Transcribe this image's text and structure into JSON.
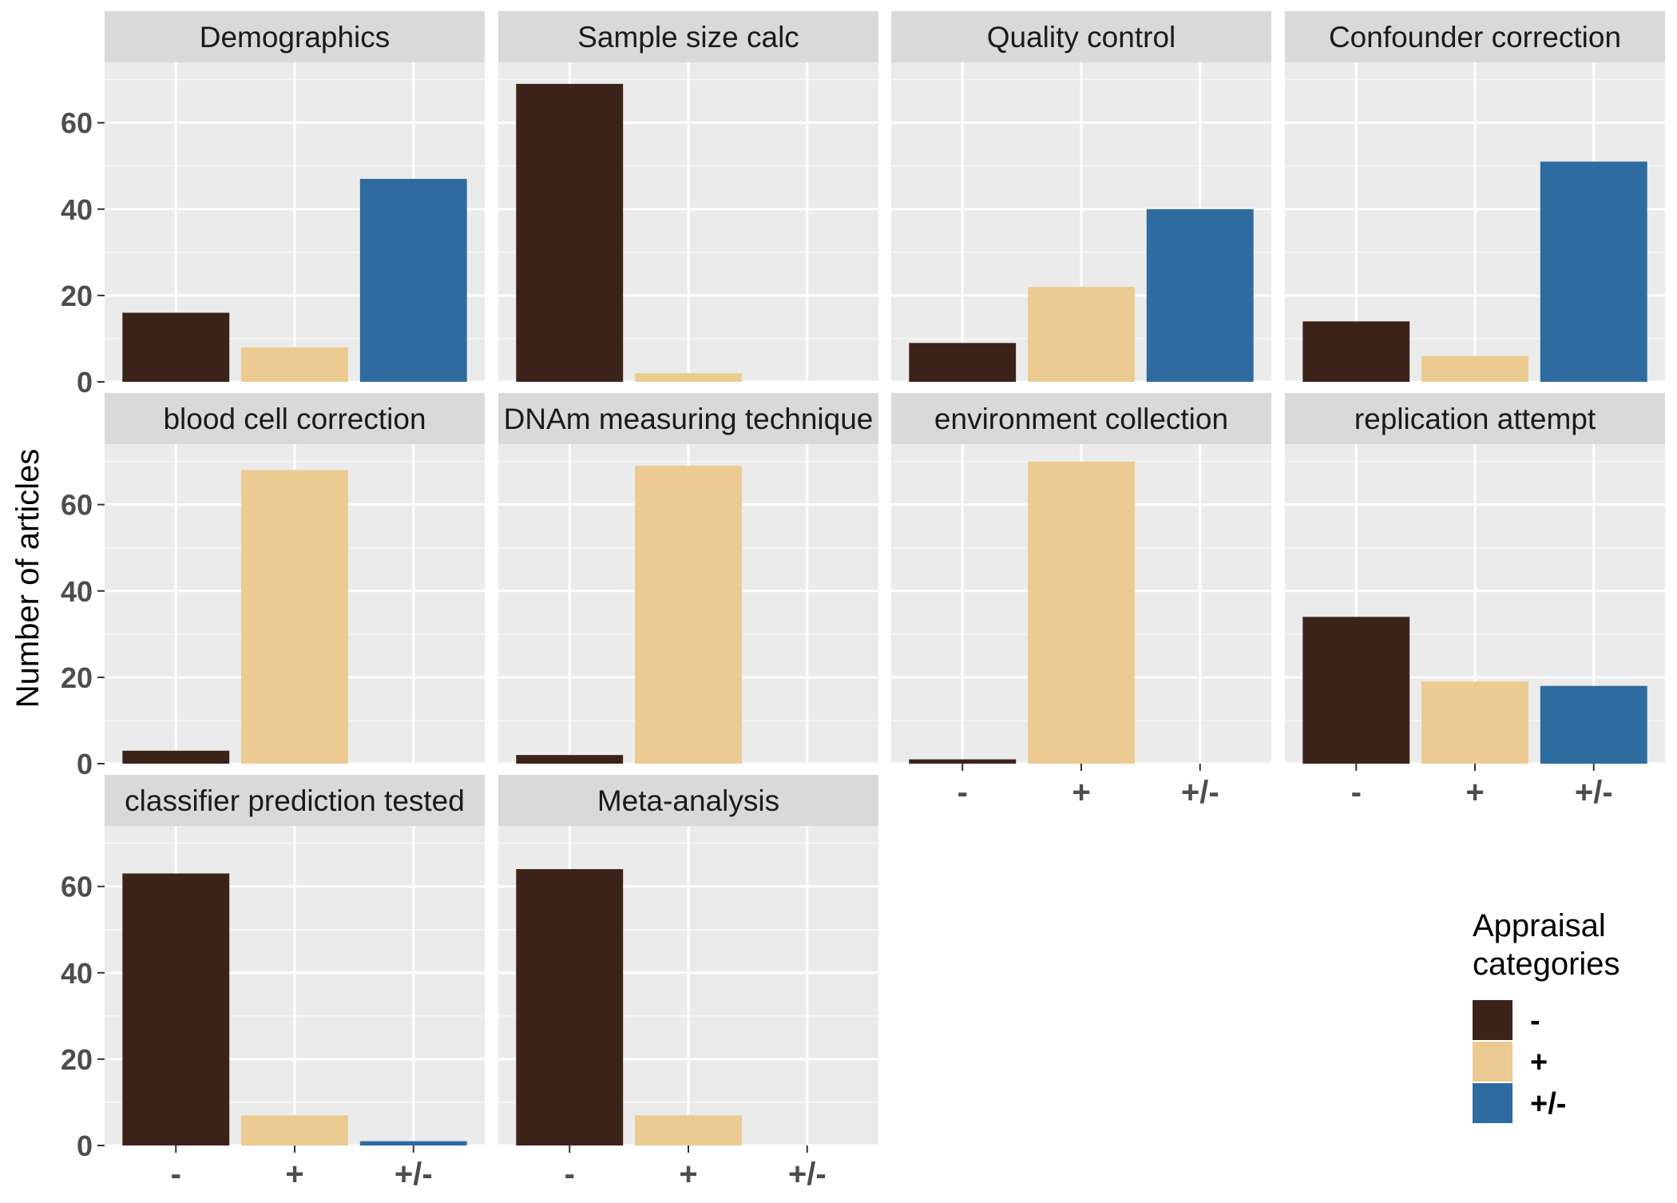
{
  "chart_data": {
    "type": "bar",
    "layout": "facet-grid",
    "ylabel": "Number of articles",
    "ylim": [
      0,
      74
    ],
    "yticks": [
      0,
      20,
      40,
      60
    ],
    "categories": [
      "-",
      "+",
      "+/-"
    ],
    "legend": {
      "title_lines": [
        "Appraisal",
        "categories"
      ],
      "placement": "bottom-right",
      "entries": [
        {
          "label": "-",
          "color": "#3c231a"
        },
        {
          "label": "+",
          "color": "#ebcb92"
        },
        {
          "label": "+/-",
          "color": "#2e6b9e"
        }
      ]
    },
    "panels": [
      {
        "title": "Demographics",
        "values": [
          16,
          8,
          47
        ]
      },
      {
        "title": "Sample size calc",
        "values": [
          69,
          2,
          0
        ]
      },
      {
        "title": "Quality control",
        "values": [
          9,
          22,
          40
        ]
      },
      {
        "title": "Confounder correction",
        "values": [
          14,
          6,
          51
        ]
      },
      {
        "title": "blood cell correction",
        "values": [
          3,
          68,
          0
        ]
      },
      {
        "title": "DNAm measuring technique",
        "values": [
          2,
          69,
          0
        ]
      },
      {
        "title": "environment collection",
        "values": [
          1,
          70,
          0
        ]
      },
      {
        "title": "replication attempt",
        "values": [
          34,
          19,
          18
        ]
      },
      {
        "title": "classifier prediction tested",
        "values": [
          63,
          7,
          1
        ]
      },
      {
        "title": "Meta-analysis",
        "values": [
          64,
          7,
          0
        ]
      }
    ]
  }
}
